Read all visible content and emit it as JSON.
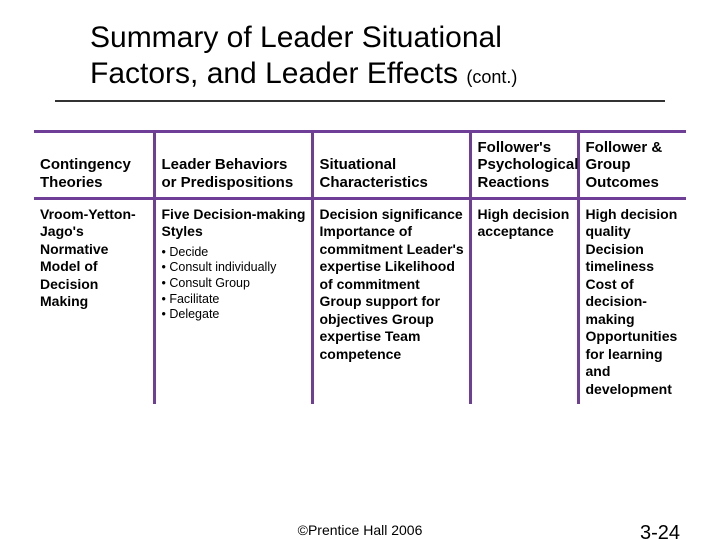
{
  "colors": {
    "table_border": "#6f3f98",
    "text": "#000000",
    "background": "#ffffff",
    "title_rule": "#333333"
  },
  "typography": {
    "title_fontsize_pt": 30,
    "cont_fontsize_pt": 18,
    "header_fontsize_pt": 15,
    "cell_fontsize_pt": 14,
    "sublist_fontsize_pt": 12.5,
    "footer_fontsize_pt": 14,
    "pagenum_fontsize_pt": 20
  },
  "title": {
    "line1": "Summary of Leader Situational",
    "line2_prefix": "Factors, and Leader Effects ",
    "cont": "(cont.)"
  },
  "table": {
    "headers": {
      "c1": "Contingency Theories",
      "c2": "Leader Behaviors or Predispositions",
      "c3": "Situational Characteristics",
      "c4": "Follower's Psychological Reactions",
      "c5": "Follower & Group Outcomes"
    },
    "row": {
      "c1": "Vroom-Yetton-Jago's Normative Model of Decision Making",
      "c2_head": "Five Decision-making Styles",
      "c2_items": [
        "• Decide",
        "• Consult individually",
        "• Consult Group",
        "• Facilitate",
        "• Delegate"
      ],
      "c3": "Decision significance Importance of commitment Leader's expertise Likelihood of commitment Group support for objectives Group expertise Team competence",
      "c4": "High decision acceptance",
      "c5": "High decision quality Decision timeliness Cost of decision-making Opportunities for learning and development"
    }
  },
  "footer": {
    "copyright": "©Prentice Hall 2006",
    "page": "3-24"
  }
}
